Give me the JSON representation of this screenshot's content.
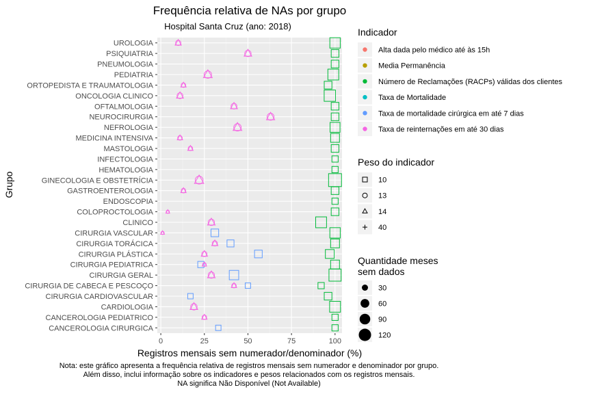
{
  "chart_data": {
    "type": "scatter",
    "title": "Frequência relativa de NAs por grupo",
    "subtitle": "Hospital Santa Cruz (ano: 2018)",
    "xlabel": "Registros mensais sem numerador/denominador (%)",
    "ylabel": "Grupo",
    "xlim": [
      -2,
      104
    ],
    "x_ticks": [
      0,
      25,
      50,
      75,
      100
    ],
    "grid": true,
    "legend_position": "right",
    "categories": [
      "UROLOGIA",
      "PSIQUIATRIA",
      "PNEUMOLOGIA",
      "PEDIATRIA",
      "ORTOPEDISTA E TRAUMATOLOGIA",
      "ONCOLOGIA CLINICO",
      "OFTALMOLOGIA",
      "NEUROCIRURGIA",
      "NEFROLOGIA",
      "MEDICINA INTENSIVA",
      "MASTOLOGIA",
      "INFECTOLOGIA",
      "HEMATOLOGIA",
      "GINECOLOGIA E OBSTETRÍCIA",
      "GASTROENTEROLOGIA",
      "ENDOSCOPIA",
      "COLOPROCTOLOGIA",
      "CLINICO",
      "CIRURGIA VASCULAR",
      "CIRURGIA TORÁCICA",
      "CIRURGIA PLÁSTICA",
      "CIRURGIA PEDIATRICA",
      "CIRURGIA GERAL",
      "CIRURGIA DE CABECA E PESCOÇO",
      "CIRURGIA CARDIOVASCULAR",
      "CARDIOLOGIA",
      "CANCEROLOGIA PEDIATRICO",
      "CANCEROLOGIA CIRURGICA"
    ],
    "series": [
      {
        "name": "Número de Reclamações (RACPs) válidas dos clientes",
        "color": "#00ba38",
        "shape": "square",
        "points": [
          {
            "group": "UROLOGIA",
            "x": 100,
            "months": 110
          },
          {
            "group": "PSIQUIATRIA",
            "x": 100,
            "months": 60
          },
          {
            "group": "PNEUMOLOGIA",
            "x": 100,
            "months": 60
          },
          {
            "group": "PEDIATRIA",
            "x": 99,
            "months": 120
          },
          {
            "group": "ORTOPEDISTA E TRAUMATOLOGIA",
            "x": 96,
            "months": 60
          },
          {
            "group": "ONCOLOGIA CLINICO",
            "x": 97,
            "months": 130
          },
          {
            "group": "OFTALMOLOGIA",
            "x": 100,
            "months": 60
          },
          {
            "group": "NEUROCIRURGIA",
            "x": 100,
            "months": 60
          },
          {
            "group": "NEFROLOGIA",
            "x": 100,
            "months": 100
          },
          {
            "group": "MEDICINA INTENSIVA",
            "x": 100,
            "months": 80
          },
          {
            "group": "MASTOLOGIA",
            "x": 100,
            "months": 60
          },
          {
            "group": "INFECTOLOGIA",
            "x": 100,
            "months": 40
          },
          {
            "group": "HEMATOLOGIA",
            "x": 100,
            "months": 40
          },
          {
            "group": "GINECOLOGIA E OBSTETRÍCIA",
            "x": 100,
            "months": 170
          },
          {
            "group": "GASTROENTEROLOGIA",
            "x": 100,
            "months": 60
          },
          {
            "group": "ENDOSCOPIA",
            "x": 100,
            "months": 40
          },
          {
            "group": "COLOPROCTOLOGIA",
            "x": 100,
            "months": 60
          },
          {
            "group": "CLINICO",
            "x": 92,
            "months": 120
          },
          {
            "group": "CIRURGIA VASCULAR",
            "x": 100,
            "months": 110
          },
          {
            "group": "CIRURGIA TORÁCICA",
            "x": 100,
            "months": 80
          },
          {
            "group": "CIRURGIA PLÁSTICA",
            "x": 97,
            "months": 80
          },
          {
            "group": "CIRURGIA PEDIATRICA",
            "x": 100,
            "months": 80
          },
          {
            "group": "CIRURGIA GERAL",
            "x": 100,
            "months": 150
          },
          {
            "group": "CIRURGIA DE CABECA E PESCOÇO",
            "x": 92,
            "months": 40
          },
          {
            "group": "CIRURGIA CARDIOVASCULAR",
            "x": 96,
            "months": 60
          },
          {
            "group": "CARDIOLOGIA",
            "x": 100,
            "months": 120
          },
          {
            "group": "CANCEROLOGIA PEDIATRICO",
            "x": 100,
            "months": 40
          },
          {
            "group": "CANCEROLOGIA CIRURGICA",
            "x": 100,
            "months": 40
          }
        ]
      },
      {
        "name": "Taxa de mortalidade cirúrgica em até 7 dias",
        "color": "#619cff",
        "shape": "square",
        "points": [
          {
            "group": "CIRURGIA VASCULAR",
            "x": 31,
            "months": 60
          },
          {
            "group": "CIRURGIA TORÁCICA",
            "x": 40,
            "months": 50
          },
          {
            "group": "CIRURGIA PLÁSTICA",
            "x": 56,
            "months": 60
          },
          {
            "group": "CIRURGIA PEDIATRICA",
            "x": 23,
            "months": 40
          },
          {
            "group": "CIRURGIA GERAL",
            "x": 42,
            "months": 90
          },
          {
            "group": "CIRURGIA DE CABECA E PESCOÇO",
            "x": 50,
            "months": 30
          },
          {
            "group": "CIRURGIA CARDIOVASCULAR",
            "x": 17,
            "months": 30
          },
          {
            "group": "CANCEROLOGIA CIRURGICA",
            "x": 33,
            "months": 30
          }
        ]
      },
      {
        "name": "Taxa de reinternações em até 30 dias",
        "color": "#f564e3",
        "shape": "triangle",
        "points": [
          {
            "group": "UROLOGIA",
            "x": 10,
            "months": 40
          },
          {
            "group": "PSIQUIATRIA",
            "x": 50,
            "months": 60
          },
          {
            "group": "PEDIATRIA",
            "x": 27,
            "months": 80
          },
          {
            "group": "ORTOPEDISTA E TRAUMATOLOGIA",
            "x": 13,
            "months": 30
          },
          {
            "group": "ONCOLOGIA CLINICO",
            "x": 11,
            "months": 50
          },
          {
            "group": "OFTALMOLOGIA",
            "x": 42,
            "months": 50
          },
          {
            "group": "NEUROCIRURGIA",
            "x": 63,
            "months": 70
          },
          {
            "group": "NEFROLOGIA",
            "x": 44,
            "months": 80
          },
          {
            "group": "MEDICINA INTENSIVA",
            "x": 11,
            "months": 30
          },
          {
            "group": "MASTOLOGIA",
            "x": 17,
            "months": 30
          },
          {
            "group": "GINECOLOGIA E OBSTETRÍCIA",
            "x": 22,
            "months": 90
          },
          {
            "group": "GASTROENTEROLOGIA",
            "x": 13,
            "months": 30
          },
          {
            "group": "COLOPROCTOLOGIA",
            "x": 4,
            "months": 15
          },
          {
            "group": "CLINICO",
            "x": 29,
            "months": 60
          },
          {
            "group": "CIRURGIA VASCULAR",
            "x": 1,
            "months": 15
          },
          {
            "group": "CIRURGIA TORÁCICA",
            "x": 31,
            "months": 40
          },
          {
            "group": "CIRURGIA PLÁSTICA",
            "x": 25,
            "months": 40
          },
          {
            "group": "CIRURGIA PEDIATRICA",
            "x": 25,
            "months": 20
          },
          {
            "group": "CIRURGIA GERAL",
            "x": 29,
            "months": 60
          },
          {
            "group": "CIRURGIA DE CABECA E PESCOÇO",
            "x": 42,
            "months": 30
          },
          {
            "group": "CARDIOLOGIA",
            "x": 19,
            "months": 60
          },
          {
            "group": "CANCEROLOGIA PEDIATRICO",
            "x": 25,
            "months": 30
          }
        ]
      }
    ]
  },
  "legend": {
    "indicador": {
      "title": "Indicador",
      "items": [
        {
          "label": "Alta dada pelo médico até às 15h",
          "color": "#f8766d"
        },
        {
          "label": "Media Permanência",
          "color": "#b79f00"
        },
        {
          "label": "Número de Reclamações (RACPs) válidas dos clientes",
          "color": "#00ba38"
        },
        {
          "label": "Taxa de Mortalidade",
          "color": "#00bfc4"
        },
        {
          "label": "Taxa de mortalidade cirúrgica em até 7 dias",
          "color": "#619cff"
        },
        {
          "label": "Taxa de reinternações em até 30 dias",
          "color": "#f564e3"
        }
      ]
    },
    "peso": {
      "title": "Peso do indicador",
      "items": [
        {
          "label": "10",
          "shape": "square"
        },
        {
          "label": "13",
          "shape": "circle"
        },
        {
          "label": "14",
          "shape": "triangle"
        },
        {
          "label": "40",
          "shape": "plus"
        }
      ]
    },
    "quantidade": {
      "title_line1": "Quantidade meses",
      "title_line2": "sem dados",
      "items": [
        {
          "label": "30",
          "value": 30
        },
        {
          "label": "60",
          "value": 60
        },
        {
          "label": "90",
          "value": 90
        },
        {
          "label": "120",
          "value": 120
        }
      ]
    }
  },
  "note": {
    "line1": "Nota: este gráfico apresenta a frequência relativa de registros mensais sem numerador e denominador por grupo.",
    "line2": "Além disso, inclui informação sobre os indicadores e pesos relacionados com os registros mensais.",
    "line3": "NA significa Não Disponível (Not Available)"
  }
}
